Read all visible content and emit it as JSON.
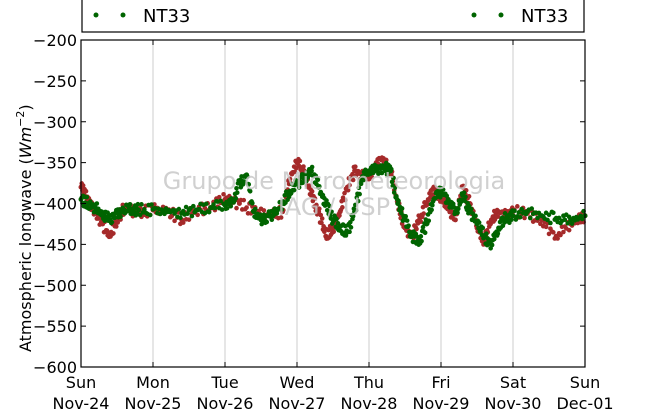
{
  "chart_data": {
    "type": "scatter",
    "title": "",
    "xlabel": "",
    "ylabel": "Atmospheric longwave (Wm⁻²)",
    "ylabel_text": "Atmospheric longwave (",
    "ylabel_unit_base": "Wm",
    "ylabel_unit_exp": "−2",
    "ylabel_close": ")",
    "ylim": [
      -600,
      -200
    ],
    "yticks": [
      -200,
      -250,
      -300,
      -350,
      -400,
      -450,
      -500,
      -550,
      -600
    ],
    "ytick_labels": [
      "−200",
      "−250",
      "−300",
      "−350",
      "−400",
      "−450",
      "−500",
      "−550",
      "−600"
    ],
    "xlim": [
      "2014-11-24",
      "2014-12-01"
    ],
    "xticks": [
      {
        "day": "Sun",
        "date": "Nov-24"
      },
      {
        "day": "Mon",
        "date": "Nov-25"
      },
      {
        "day": "Tue",
        "date": "Nov-26"
      },
      {
        "day": "Wed",
        "date": "Nov-27"
      },
      {
        "day": "Thu",
        "date": "Nov-28"
      },
      {
        "day": "Fri",
        "date": "Nov-29"
      },
      {
        "day": "Sat",
        "date": "Nov-30"
      },
      {
        "day": "Sun",
        "date": "Dec-01"
      }
    ],
    "grid": "vertical",
    "legend_placement": "top (two entries, left and right)",
    "series": [
      {
        "name": "NT33",
        "color": "#a52a2a",
        "x_days": [
          0.0,
          0.1,
          0.2,
          0.3,
          0.4,
          0.5,
          0.6,
          0.7,
          0.8,
          1.0,
          1.2,
          1.4,
          1.6,
          1.8,
          2.0,
          2.2,
          2.4,
          2.6,
          2.8,
          2.9,
          3.0,
          3.1,
          3.2,
          3.3,
          3.4,
          3.5,
          3.6,
          3.7,
          3.8,
          3.9,
          4.0,
          4.1,
          4.2,
          4.3,
          4.4,
          4.5,
          4.6,
          4.7,
          4.8,
          4.9,
          5.0,
          5.1,
          5.2,
          5.3,
          5.4,
          5.5,
          5.6,
          5.7,
          5.8,
          5.9,
          6.0,
          6.2,
          6.4,
          6.6,
          6.8,
          7.0
        ],
        "y": [
          -380,
          -395,
          -410,
          -425,
          -440,
          -420,
          -405,
          -408,
          -410,
          -408,
          -410,
          -420,
          -408,
          -405,
          -395,
          -400,
          -410,
          -415,
          -410,
          -370,
          -350,
          -360,
          -390,
          -410,
          -440,
          -430,
          -410,
          -380,
          -360,
          -365,
          -370,
          -350,
          -345,
          -360,
          -400,
          -430,
          -440,
          -420,
          -400,
          -380,
          -395,
          -405,
          -420,
          -380,
          -400,
          -430,
          -445,
          -420,
          -410,
          -415,
          -410,
          -412,
          -420,
          -440,
          -425,
          -415
        ]
      },
      {
        "name": "NT33",
        "color": "#006400",
        "x_days": [
          0.0,
          0.1,
          0.2,
          0.3,
          0.4,
          0.5,
          0.6,
          0.7,
          0.8,
          1.0,
          1.2,
          1.4,
          1.6,
          1.8,
          2.0,
          2.1,
          2.2,
          2.3,
          2.4,
          2.5,
          2.6,
          2.7,
          2.8,
          2.9,
          3.0,
          3.1,
          3.2,
          3.3,
          3.4,
          3.5,
          3.6,
          3.7,
          3.8,
          3.9,
          4.0,
          4.1,
          4.2,
          4.3,
          4.4,
          4.5,
          4.6,
          4.7,
          4.8,
          4.9,
          5.0,
          5.1,
          5.2,
          5.3,
          5.4,
          5.5,
          5.6,
          5.7,
          5.8,
          5.9,
          6.0,
          6.2,
          6.4,
          6.6,
          6.8,
          7.0
        ],
        "y": [
          -395,
          -400,
          -405,
          -415,
          -420,
          -412,
          -408,
          -408,
          -408,
          -407,
          -410,
          -412,
          -408,
          -405,
          -402,
          -398,
          -375,
          -365,
          -410,
          -420,
          -415,
          -412,
          -400,
          -385,
          -375,
          -370,
          -360,
          -380,
          -400,
          -420,
          -428,
          -435,
          -410,
          -370,
          -360,
          -358,
          -355,
          -360,
          -400,
          -420,
          -440,
          -445,
          -425,
          -395,
          -385,
          -395,
          -410,
          -390,
          -410,
          -425,
          -440,
          -450,
          -430,
          -418,
          -415,
          -410,
          -415,
          -418,
          -420,
          -415
        ]
      }
    ],
    "watermark_lines": [
      "Grupo de Micrometeorologia",
      "IAG / USP"
    ]
  },
  "legend": {
    "left_label": "NT33",
    "right_label": "NT33"
  }
}
